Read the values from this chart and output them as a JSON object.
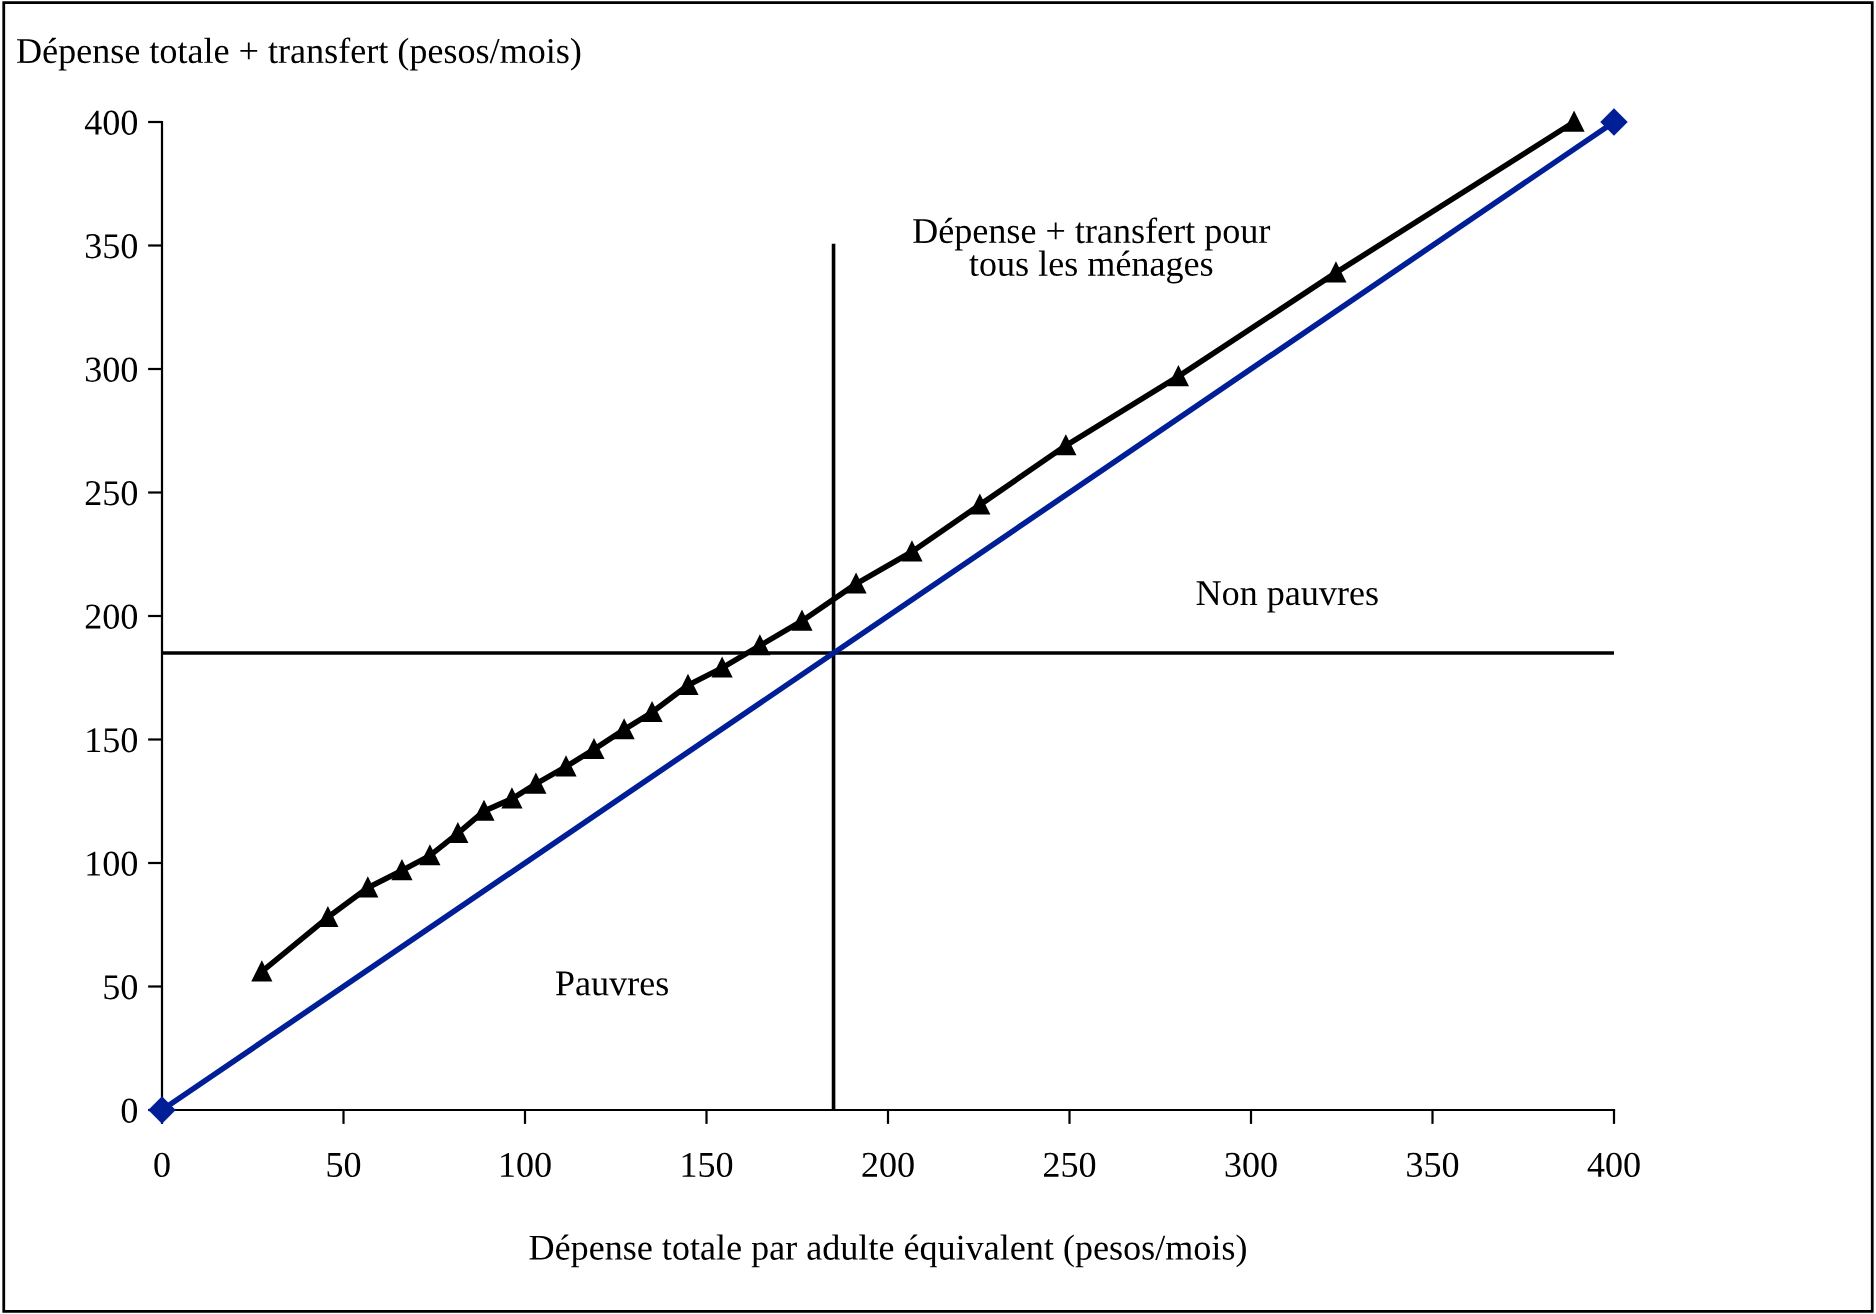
{
  "chart_data": {
    "type": "line",
    "xlabel": "Dépense totale par adulte équivalent (pesos/mois)",
    "ylabel": "Dépense totale + transfert (pesos/mois)",
    "series": [
      {
        "color": "#000000",
        "marker": "triangle",
        "x": [
          27.5,
          45.7,
          56.7,
          66.1,
          73.8,
          81.5,
          88.7,
          96.4,
          103,
          111.3,
          119,
          127.3,
          135,
          144.9,
          154.3,
          164.7,
          176.3,
          191.2,
          206.6,
          225.3,
          249,
          280,
          323.4,
          389
        ],
        "values": [
          56,
          78,
          90,
          97,
          103,
          112,
          121,
          126,
          132,
          139,
          146,
          154,
          161,
          172,
          179,
          188,
          198,
          213,
          226,
          245,
          269,
          297,
          339,
          400
        ]
      },
      {
        "color": "#001e96",
        "marker": "diamond",
        "x": [
          0,
          400
        ],
        "values": [
          0,
          400
        ]
      }
    ],
    "ref_lines": [
      {
        "axis": "x",
        "value": 185,
        "color": "#000000"
      },
      {
        "axis": "y",
        "value": 185,
        "color": "#000000"
      }
    ],
    "annotations": [
      "Dépense + transfert pour\ntous les ménages",
      "Non pauvres",
      "Pauvres"
    ],
    "xlim": [
      0,
      400
    ],
    "ylim": [
      0,
      400
    ],
    "xticks": [
      0,
      50,
      100,
      150,
      200,
      250,
      300,
      350,
      400
    ],
    "yticks": [
      0,
      50,
      100,
      150,
      200,
      250,
      300,
      350,
      400
    ],
    "grid": false,
    "legend": false
  }
}
